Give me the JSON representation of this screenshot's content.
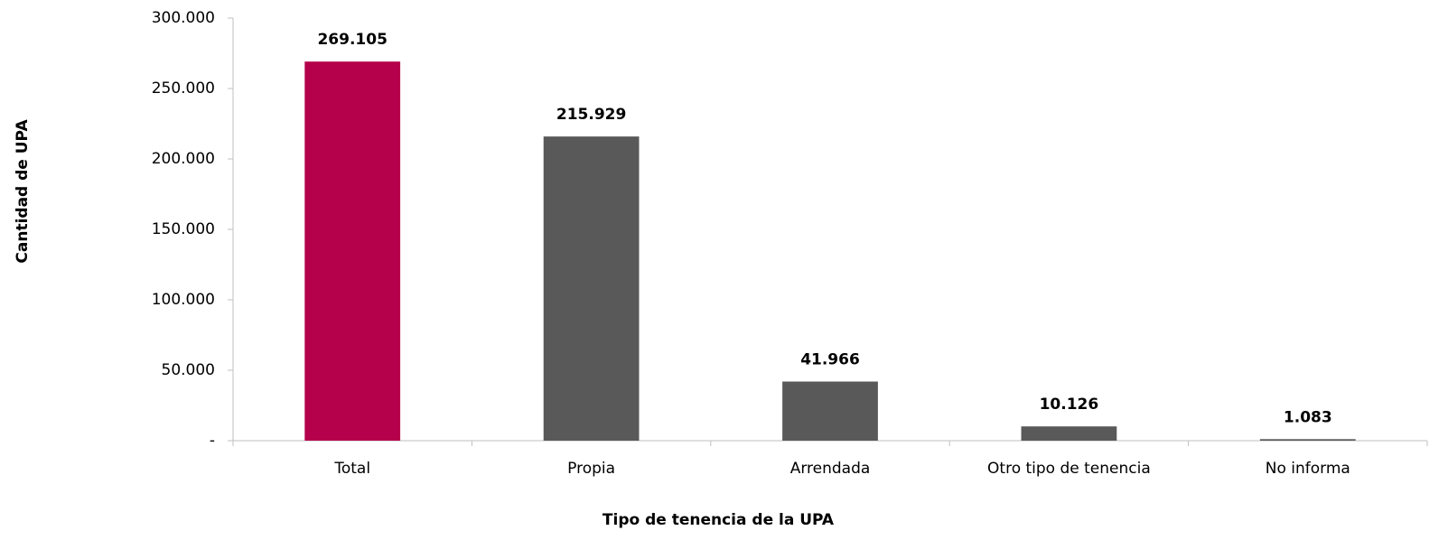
{
  "chart_data": {
    "type": "bar",
    "x_label": "Tipo de tenencia de la UPA",
    "y_label": "Cantidad de UPA",
    "categories": [
      "Total",
      "Propia",
      "Arrendada",
      "Otro tipo de tenencia",
      "No informa"
    ],
    "values": [
      269105,
      215929,
      41966,
      10126,
      1083
    ],
    "value_labels": [
      "269.105",
      "215.929",
      "41.966",
      "10.126",
      "1.083"
    ],
    "colors": [
      "#b5004b",
      "#595959",
      "#595959",
      "#595959",
      "#595959"
    ],
    "value_label_colors": [
      "#b5004b",
      "#000000",
      "#000000",
      "#000000",
      "#000000"
    ],
    "ylim": [
      0,
      300000
    ],
    "yticks": [
      {
        "value": 0,
        "label": "-"
      },
      {
        "value": 50000,
        "label": "50.000"
      },
      {
        "value": 100000,
        "label": "100.000"
      },
      {
        "value": 150000,
        "label": "150.000"
      },
      {
        "value": 200000,
        "label": "200.000"
      },
      {
        "value": 250000,
        "label": "250.000"
      },
      {
        "value": 300000,
        "label": "300.000"
      }
    ],
    "grid": false
  }
}
